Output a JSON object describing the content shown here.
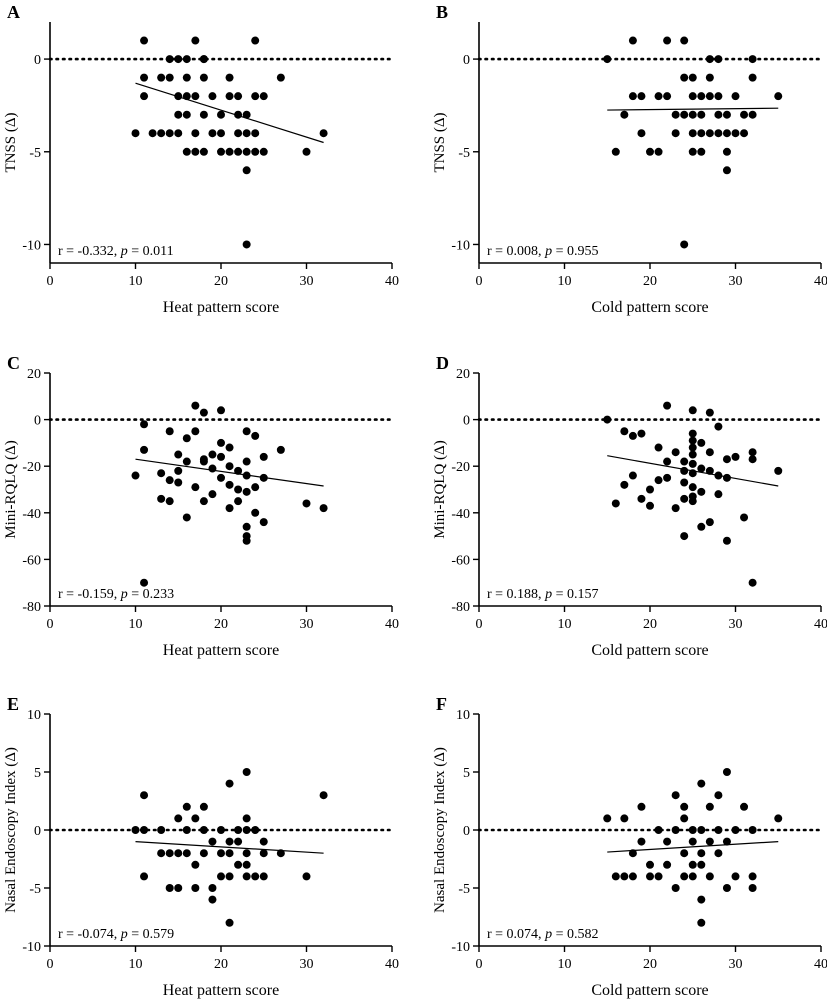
{
  "chart_data": [
    {
      "type": "scatter",
      "panel": "A",
      "xlabel": "Heat pattern score",
      "ylabel": "TNSS (Δ)",
      "xlim": [
        0,
        40
      ],
      "ylim": [
        -11,
        2
      ],
      "xticks": [
        0,
        10,
        20,
        30,
        40
      ],
      "yticks": [
        0,
        -5,
        -10
      ],
      "reference_line_y": 0,
      "annotation": {
        "r_text": "r = -0.332, ",
        "p_italic": "p",
        "p_text": " = 0.011"
      },
      "fit_line": {
        "x": [
          10,
          32
        ],
        "y": [
          -1.3,
          -4.5
        ]
      },
      "points": [
        [
          10,
          -4
        ],
        [
          11,
          1
        ],
        [
          11,
          -1
        ],
        [
          11,
          -2
        ],
        [
          12,
          -4
        ],
        [
          13,
          -1
        ],
        [
          13,
          -4
        ],
        [
          14,
          -1
        ],
        [
          14,
          -4
        ],
        [
          14,
          0
        ],
        [
          15,
          0
        ],
        [
          15,
          -2
        ],
        [
          15,
          -4
        ],
        [
          15,
          -3
        ],
        [
          16,
          -2
        ],
        [
          16,
          -1
        ],
        [
          16,
          0
        ],
        [
          16,
          -3
        ],
        [
          16,
          -5
        ],
        [
          17,
          1
        ],
        [
          17,
          -2
        ],
        [
          17,
          -4
        ],
        [
          17,
          -5
        ],
        [
          18,
          0
        ],
        [
          18,
          -1
        ],
        [
          18,
          -3
        ],
        [
          18,
          -5
        ],
        [
          18,
          0
        ],
        [
          19,
          -4
        ],
        [
          19,
          -2
        ],
        [
          20,
          -3
        ],
        [
          20,
          -5
        ],
        [
          20,
          -4
        ],
        [
          21,
          -1
        ],
        [
          21,
          -2
        ],
        [
          21,
          -5
        ],
        [
          22,
          -5
        ],
        [
          22,
          -3
        ],
        [
          22,
          -4
        ],
        [
          22,
          -2
        ],
        [
          23,
          -3
        ],
        [
          23,
          -5
        ],
        [
          23,
          -6
        ],
        [
          23,
          -10
        ],
        [
          23,
          -4
        ],
        [
          24,
          -5
        ],
        [
          24,
          1
        ],
        [
          24,
          -2
        ],
        [
          24,
          -4
        ],
        [
          25,
          -5
        ],
        [
          25,
          -2
        ],
        [
          27,
          -1
        ],
        [
          30,
          -5
        ],
        [
          32,
          -4
        ]
      ]
    },
    {
      "type": "scatter",
      "panel": "B",
      "xlabel": "Cold pattern score",
      "ylabel": "TNSS (Δ)",
      "xlim": [
        0,
        40
      ],
      "ylim": [
        -11,
        2
      ],
      "xticks": [
        0,
        10,
        20,
        30,
        40
      ],
      "yticks": [
        0,
        -5,
        -10
      ],
      "reference_line_y": 0,
      "annotation": {
        "r_text": "r = 0.008, ",
        "p_italic": "p",
        "p_text": " = 0.955"
      },
      "fit_line": {
        "x": [
          15,
          35
        ],
        "y": [
          -2.75,
          -2.65
        ]
      },
      "points": [
        [
          15,
          0
        ],
        [
          16,
          -5
        ],
        [
          17,
          -3
        ],
        [
          18,
          1
        ],
        [
          18,
          -2
        ],
        [
          19,
          -2
        ],
        [
          19,
          -4
        ],
        [
          20,
          -5
        ],
        [
          21,
          -2
        ],
        [
          21,
          -5
        ],
        [
          22,
          1
        ],
        [
          22,
          -2
        ],
        [
          23,
          -3
        ],
        [
          23,
          -4
        ],
        [
          24,
          1
        ],
        [
          24,
          -10
        ],
        [
          24,
          -3
        ],
        [
          24,
          -1
        ],
        [
          25,
          -1
        ],
        [
          25,
          -2
        ],
        [
          25,
          -3
        ],
        [
          25,
          -4
        ],
        [
          25,
          -5
        ],
        [
          26,
          -2
        ],
        [
          26,
          -3
        ],
        [
          26,
          -4
        ],
        [
          26,
          -5
        ],
        [
          27,
          0
        ],
        [
          27,
          -1
        ],
        [
          27,
          -2
        ],
        [
          27,
          -4
        ],
        [
          28,
          -2
        ],
        [
          28,
          -3
        ],
        [
          28,
          -4
        ],
        [
          28,
          0
        ],
        [
          29,
          -3
        ],
        [
          29,
          -4
        ],
        [
          29,
          -5
        ],
        [
          29,
          -6
        ],
        [
          30,
          -2
        ],
        [
          30,
          -4
        ],
        [
          31,
          -4
        ],
        [
          31,
          -3
        ],
        [
          32,
          0
        ],
        [
          32,
          -1
        ],
        [
          32,
          -3
        ],
        [
          35,
          -2
        ]
      ]
    },
    {
      "type": "scatter",
      "panel": "C",
      "xlabel": "Heat pattern score",
      "ylabel": "Mini-RQLQ (Δ)",
      "xlim": [
        0,
        40
      ],
      "ylim": [
        -80,
        20
      ],
      "xticks": [
        0,
        10,
        20,
        30,
        40
      ],
      "yticks": [
        20,
        0,
        -20,
        -40,
        -60,
        -80
      ],
      "reference_line_y": 0,
      "annotation": {
        "r_text": "r = -0.159, ",
        "p_italic": "p",
        "p_text": " = 0.233"
      },
      "fit_line": {
        "x": [
          10,
          32
        ],
        "y": [
          -17,
          -28.5
        ]
      },
      "points": [
        [
          10,
          -24
        ],
        [
          11,
          -2
        ],
        [
          11,
          -13
        ],
        [
          11,
          -70
        ],
        [
          13,
          -23
        ],
        [
          13,
          -34
        ],
        [
          14,
          -5
        ],
        [
          14,
          -26
        ],
        [
          14,
          -35
        ],
        [
          15,
          -15
        ],
        [
          15,
          -22
        ],
        [
          15,
          -27
        ],
        [
          16,
          -8
        ],
        [
          16,
          -18
        ],
        [
          16,
          -42
        ],
        [
          17,
          6
        ],
        [
          17,
          -5
        ],
        [
          17,
          -29
        ],
        [
          18,
          3
        ],
        [
          18,
          -18
        ],
        [
          18,
          -35
        ],
        [
          18,
          -17
        ],
        [
          19,
          -15
        ],
        [
          19,
          -21
        ],
        [
          19,
          -32
        ],
        [
          20,
          -10
        ],
        [
          20,
          -16
        ],
        [
          20,
          -25
        ],
        [
          20,
          4
        ],
        [
          21,
          -12
        ],
        [
          21,
          -20
        ],
        [
          21,
          -28
        ],
        [
          21,
          -38
        ],
        [
          22,
          -22
        ],
        [
          22,
          -30
        ],
        [
          22,
          -35
        ],
        [
          23,
          -5
        ],
        [
          23,
          -18
        ],
        [
          23,
          -24
        ],
        [
          23,
          -31
        ],
        [
          23,
          -46
        ],
        [
          23,
          -50
        ],
        [
          23,
          -52
        ],
        [
          24,
          -7
        ],
        [
          24,
          -29
        ],
        [
          24,
          -40
        ],
        [
          25,
          -16
        ],
        [
          25,
          -25
        ],
        [
          25,
          -44
        ],
        [
          27,
          -13
        ],
        [
          30,
          -36
        ],
        [
          32,
          -38
        ]
      ]
    },
    {
      "type": "scatter",
      "panel": "D",
      "xlabel": "Cold pattern score",
      "ylabel": "Mini-RQLQ (Δ)",
      "xlim": [
        0,
        40
      ],
      "ylim": [
        -80,
        20
      ],
      "xticks": [
        0,
        10,
        20,
        30,
        40
      ],
      "yticks": [
        20,
        0,
        -20,
        -40,
        -60,
        -80
      ],
      "reference_line_y": 0,
      "annotation": {
        "r_text": "r = 0.188, ",
        "p_italic": "p",
        "p_text": " = 0.157"
      },
      "fit_line": {
        "x": [
          15,
          35
        ],
        "y": [
          -15.5,
          -28.5
        ]
      },
      "points": [
        [
          15,
          0
        ],
        [
          16,
          -36
        ],
        [
          17,
          -5
        ],
        [
          17,
          -28
        ],
        [
          18,
          -7
        ],
        [
          18,
          -24
        ],
        [
          19,
          -6
        ],
        [
          19,
          -34
        ],
        [
          20,
          -30
        ],
        [
          20,
          -37
        ],
        [
          21,
          -12
        ],
        [
          21,
          -26
        ],
        [
          22,
          6
        ],
        [
          22,
          -18
        ],
        [
          22,
          -25
        ],
        [
          23,
          -14
        ],
        [
          23,
          -38
        ],
        [
          24,
          -50
        ],
        [
          24,
          -22
        ],
        [
          24,
          -34
        ],
        [
          24,
          -27
        ],
        [
          24,
          -18
        ],
        [
          25,
          4
        ],
        [
          25,
          -6
        ],
        [
          25,
          -9
        ],
        [
          25,
          -12
        ],
        [
          25,
          -15
        ],
        [
          25,
          -19
        ],
        [
          25,
          -23
        ],
        [
          25,
          -29
        ],
        [
          25,
          -33
        ],
        [
          25,
          -35
        ],
        [
          26,
          -10
        ],
        [
          26,
          -21
        ],
        [
          26,
          -31
        ],
        [
          26,
          -46
        ],
        [
          27,
          3
        ],
        [
          27,
          -14
        ],
        [
          27,
          -22
        ],
        [
          27,
          -44
        ],
        [
          28,
          -3
        ],
        [
          28,
          -24
        ],
        [
          28,
          -32
        ],
        [
          29,
          -17
        ],
        [
          29,
          -25
        ],
        [
          29,
          -52
        ],
        [
          30,
          -16
        ],
        [
          31,
          -42
        ],
        [
          32,
          -17
        ],
        [
          32,
          -70
        ],
        [
          32,
          -14
        ],
        [
          35,
          -22
        ]
      ]
    },
    {
      "type": "scatter",
      "panel": "E",
      "xlabel": "Heat pattern score",
      "ylabel": "Nasal Endoscopy Index (Δ)",
      "xlim": [
        0,
        40
      ],
      "ylim": [
        -10,
        10
      ],
      "xticks": [
        0,
        10,
        20,
        30,
        40
      ],
      "yticks": [
        10,
        5,
        0,
        -5,
        -10
      ],
      "reference_line_y": 0,
      "annotation": {
        "r_text": "r = -0.074, ",
        "p_italic": "p",
        "p_text": " = 0.579"
      },
      "fit_line": {
        "x": [
          10,
          32
        ],
        "y": [
          -1.0,
          -2.0
        ]
      },
      "points": [
        [
          10,
          0
        ],
        [
          11,
          3
        ],
        [
          11,
          0
        ],
        [
          11,
          -4
        ],
        [
          13,
          0
        ],
        [
          13,
          -2
        ],
        [
          14,
          -2
        ],
        [
          14,
          -5
        ],
        [
          15,
          -2
        ],
        [
          15,
          -5
        ],
        [
          15,
          1
        ],
        [
          16,
          2
        ],
        [
          16,
          0
        ],
        [
          16,
          -2
        ],
        [
          17,
          1
        ],
        [
          17,
          -3
        ],
        [
          17,
          -5
        ],
        [
          18,
          2
        ],
        [
          18,
          0
        ],
        [
          18,
          -2
        ],
        [
          19,
          -5
        ],
        [
          19,
          -6
        ],
        [
          19,
          -1
        ],
        [
          20,
          0
        ],
        [
          20,
          -2
        ],
        [
          20,
          -4
        ],
        [
          21,
          4
        ],
        [
          21,
          -1
        ],
        [
          21,
          -2
        ],
        [
          21,
          -4
        ],
        [
          21,
          -8
        ],
        [
          22,
          0
        ],
        [
          22,
          -1
        ],
        [
          22,
          -3
        ],
        [
          23,
          5
        ],
        [
          23,
          1
        ],
        [
          23,
          0
        ],
        [
          23,
          -2
        ],
        [
          23,
          -3
        ],
        [
          23,
          -4
        ],
        [
          24,
          0
        ],
        [
          24,
          -4
        ],
        [
          25,
          -1
        ],
        [
          25,
          -2
        ],
        [
          25,
          -4
        ],
        [
          27,
          -2
        ],
        [
          30,
          -4
        ],
        [
          32,
          3
        ]
      ]
    },
    {
      "type": "scatter",
      "panel": "F",
      "xlabel": "Cold pattern score",
      "ylabel": "Nasal Endoscopy Index (Δ)",
      "xlim": [
        0,
        40
      ],
      "ylim": [
        -10,
        10
      ],
      "xticks": [
        0,
        10,
        20,
        30,
        40
      ],
      "yticks": [
        10,
        5,
        0,
        -5,
        -10
      ],
      "reference_line_y": 0,
      "annotation": {
        "r_text": "r = 0.074, ",
        "p_italic": "p",
        "p_text": " = 0.582"
      },
      "fit_line": {
        "x": [
          15,
          35
        ],
        "y": [
          -1.9,
          -1.0
        ]
      },
      "points": [
        [
          15,
          1
        ],
        [
          16,
          -4
        ],
        [
          17,
          1
        ],
        [
          17,
          -4
        ],
        [
          18,
          -2
        ],
        [
          18,
          -4
        ],
        [
          19,
          2
        ],
        [
          19,
          -1
        ],
        [
          20,
          -3
        ],
        [
          20,
          -4
        ],
        [
          21,
          0
        ],
        [
          21,
          -4
        ],
        [
          22,
          -1
        ],
        [
          22,
          -3
        ],
        [
          23,
          3
        ],
        [
          23,
          0
        ],
        [
          23,
          -5
        ],
        [
          24,
          2
        ],
        [
          24,
          1
        ],
        [
          24,
          -2
        ],
        [
          24,
          -4
        ],
        [
          25,
          0
        ],
        [
          25,
          -1
        ],
        [
          25,
          -3
        ],
        [
          25,
          -4
        ],
        [
          26,
          4
        ],
        [
          26,
          0
        ],
        [
          26,
          -6
        ],
        [
          26,
          -8
        ],
        [
          26,
          -2
        ],
        [
          26,
          -3
        ],
        [
          27,
          2
        ],
        [
          27,
          -1
        ],
        [
          27,
          -4
        ],
        [
          28,
          3
        ],
        [
          28,
          0
        ],
        [
          28,
          -2
        ],
        [
          29,
          5
        ],
        [
          29,
          -1
        ],
        [
          29,
          -5
        ],
        [
          30,
          0
        ],
        [
          30,
          -4
        ],
        [
          31,
          2
        ],
        [
          32,
          0
        ],
        [
          32,
          -4
        ],
        [
          32,
          -5
        ],
        [
          35,
          1
        ]
      ]
    }
  ]
}
